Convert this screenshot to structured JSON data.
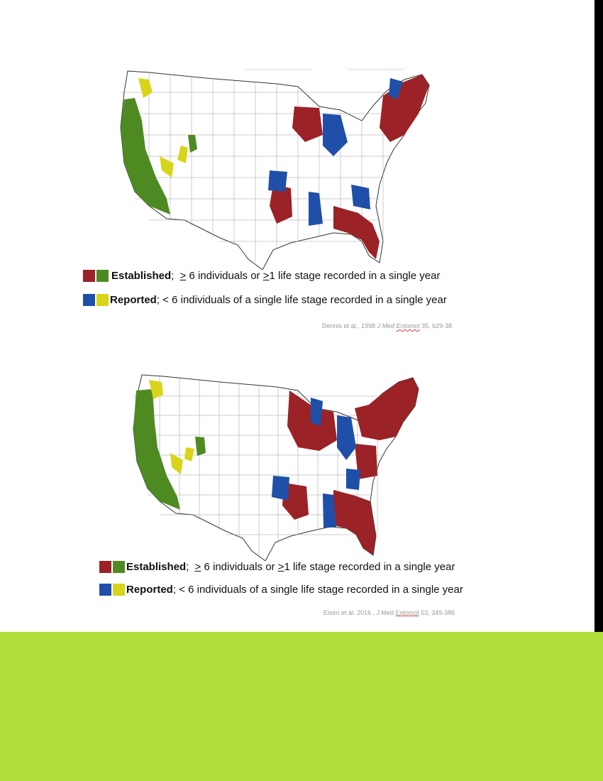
{
  "colors": {
    "established_red": "#9b2226",
    "established_green": "#4e8a22",
    "reported_blue": "#1f4fa8",
    "reported_yellow": "#d8d41a",
    "band_green": "#b2de3c"
  },
  "figures": [
    {
      "legend": {
        "established": {
          "label": "Established",
          "sep": "; ",
          "gte": ">",
          "text_a": " 6 individuals or ",
          "gte2": ">",
          "text_b": "1 life stage recorded in a single year"
        },
        "reported": {
          "label": "Reported",
          "text": "; < 6 individuals of a single life stage recorded in a single year"
        }
      },
      "citation": {
        "pre": "Dennis et al., 1998 ",
        "journal_a": "J Med ",
        "journal_b": "Entomol",
        "post": " 35, 629-38"
      }
    },
    {
      "legend": {
        "established": {
          "label": "Established",
          "sep": "; ",
          "gte": ">",
          "text_a": " 6 individuals or ",
          "gte2": ">",
          "text_b": "1 life stage recorded in a single year"
        },
        "reported": {
          "label": "Reported",
          "text": "; < 6 individuals of a single life stage recorded in a single year"
        }
      },
      "citation": {
        "pre": "Eisen et al. 2016 , J Med ",
        "journal_b": "Entomol",
        "post": " 53, 349-386"
      }
    }
  ]
}
